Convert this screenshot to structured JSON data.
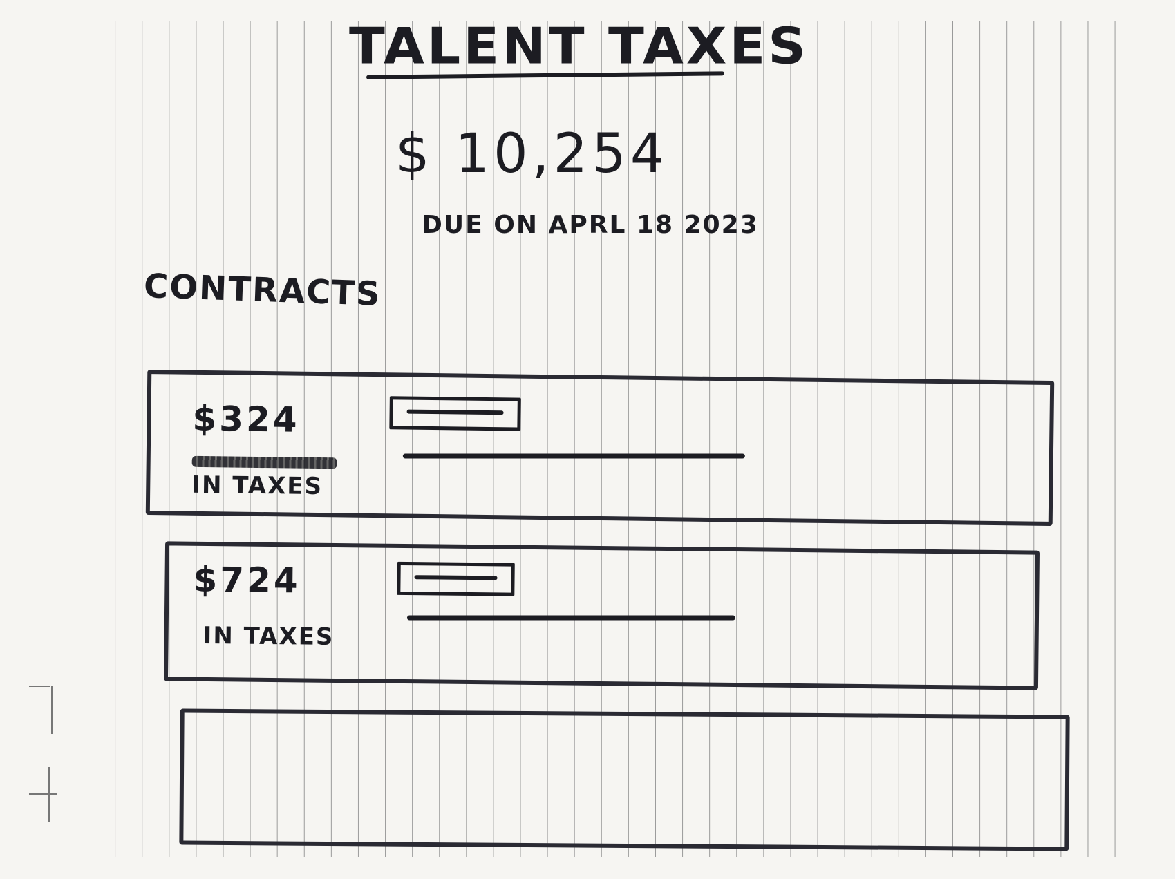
{
  "header": {
    "title": "TALENT TAXES",
    "total_amount": "$ 10,254",
    "due_text": "DUE ON APRL 18 2023"
  },
  "contracts": {
    "section_title": "CONTRACTS",
    "items": [
      {
        "amount": "$324",
        "label": "IN TAXES"
      },
      {
        "amount": "$724",
        "label": "IN TAXES"
      }
    ]
  },
  "colors": {
    "ink": "#1c1c22",
    "paper": "#f6f5f2",
    "rule_lines": "#9a9a9a"
  }
}
